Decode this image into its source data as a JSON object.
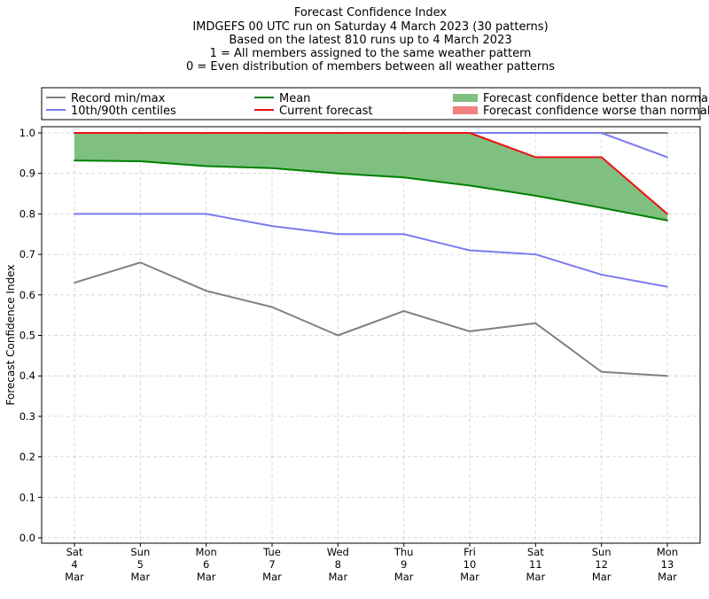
{
  "chart_data": {
    "type": "line",
    "title_lines": [
      "Forecast Confidence Index",
      "IMDGEFS 00 UTC run on Saturday 4 March 2023 (30 patterns)",
      "Based on the latest 810 runs up to 4 March 2023",
      "1 = All members assigned to the same weather pattern",
      "0 = Even distribution of members between all weather patterns"
    ],
    "ylabel": "Forecast Confidence Index",
    "ylim": [
      0,
      1.0
    ],
    "yticks": [
      "0.0",
      "0.1",
      "0.2",
      "0.3",
      "0.4",
      "0.5",
      "0.6",
      "0.7",
      "0.8",
      "0.9",
      "1.0"
    ],
    "categories": [
      [
        "Sat",
        "4",
        "Mar"
      ],
      [
        "Sun",
        "5",
        "Mar"
      ],
      [
        "Mon",
        "6",
        "Mar"
      ],
      [
        "Tue",
        "7",
        "Mar"
      ],
      [
        "Wed",
        "8",
        "Mar"
      ],
      [
        "Thu",
        "9",
        "Mar"
      ],
      [
        "Fri",
        "10",
        "Mar"
      ],
      [
        "Sat",
        "11",
        "Mar"
      ],
      [
        "Sun",
        "12",
        "Mar"
      ],
      [
        "Mon",
        "13",
        "Mar"
      ]
    ],
    "grid": true,
    "legend_placement": "top",
    "legend": [
      {
        "label": "Record min/max",
        "kind": "line",
        "color": "#808080"
      },
      {
        "label": "10th/90th centiles",
        "kind": "line",
        "color": "#7b7bf0"
      },
      {
        "label": "Mean",
        "kind": "line",
        "color": "#008000"
      },
      {
        "label": "Current forecast",
        "kind": "line",
        "color": "#ee1111"
      },
      {
        "label": "Forecast confidence better than normal",
        "kind": "fill",
        "color": "#7fbf7f"
      },
      {
        "label": "Forecast confidence worse than normal",
        "kind": "fill",
        "color": "#f28080"
      }
    ],
    "series": {
      "record_min": [
        0.63,
        0.68,
        0.61,
        0.57,
        0.5,
        0.56,
        0.51,
        0.53,
        0.41,
        0.4
      ],
      "record_max": [
        1.0,
        1.0,
        1.0,
        1.0,
        1.0,
        1.0,
        1.0,
        1.0,
        1.0,
        1.0
      ],
      "p10": [
        0.8,
        0.8,
        0.8,
        0.77,
        0.75,
        0.75,
        0.71,
        0.7,
        0.65,
        0.62
      ],
      "p90": [
        1.0,
        1.0,
        1.0,
        1.0,
        1.0,
        1.0,
        1.0,
        1.0,
        1.0,
        0.94
      ],
      "mean": [
        0.932,
        0.93,
        0.918,
        0.913,
        0.9,
        0.89,
        0.87,
        0.845,
        0.815,
        0.784
      ],
      "current": [
        1.0,
        1.0,
        1.0,
        1.0,
        1.0,
        1.0,
        1.0,
        0.94,
        0.94,
        0.8
      ]
    }
  }
}
